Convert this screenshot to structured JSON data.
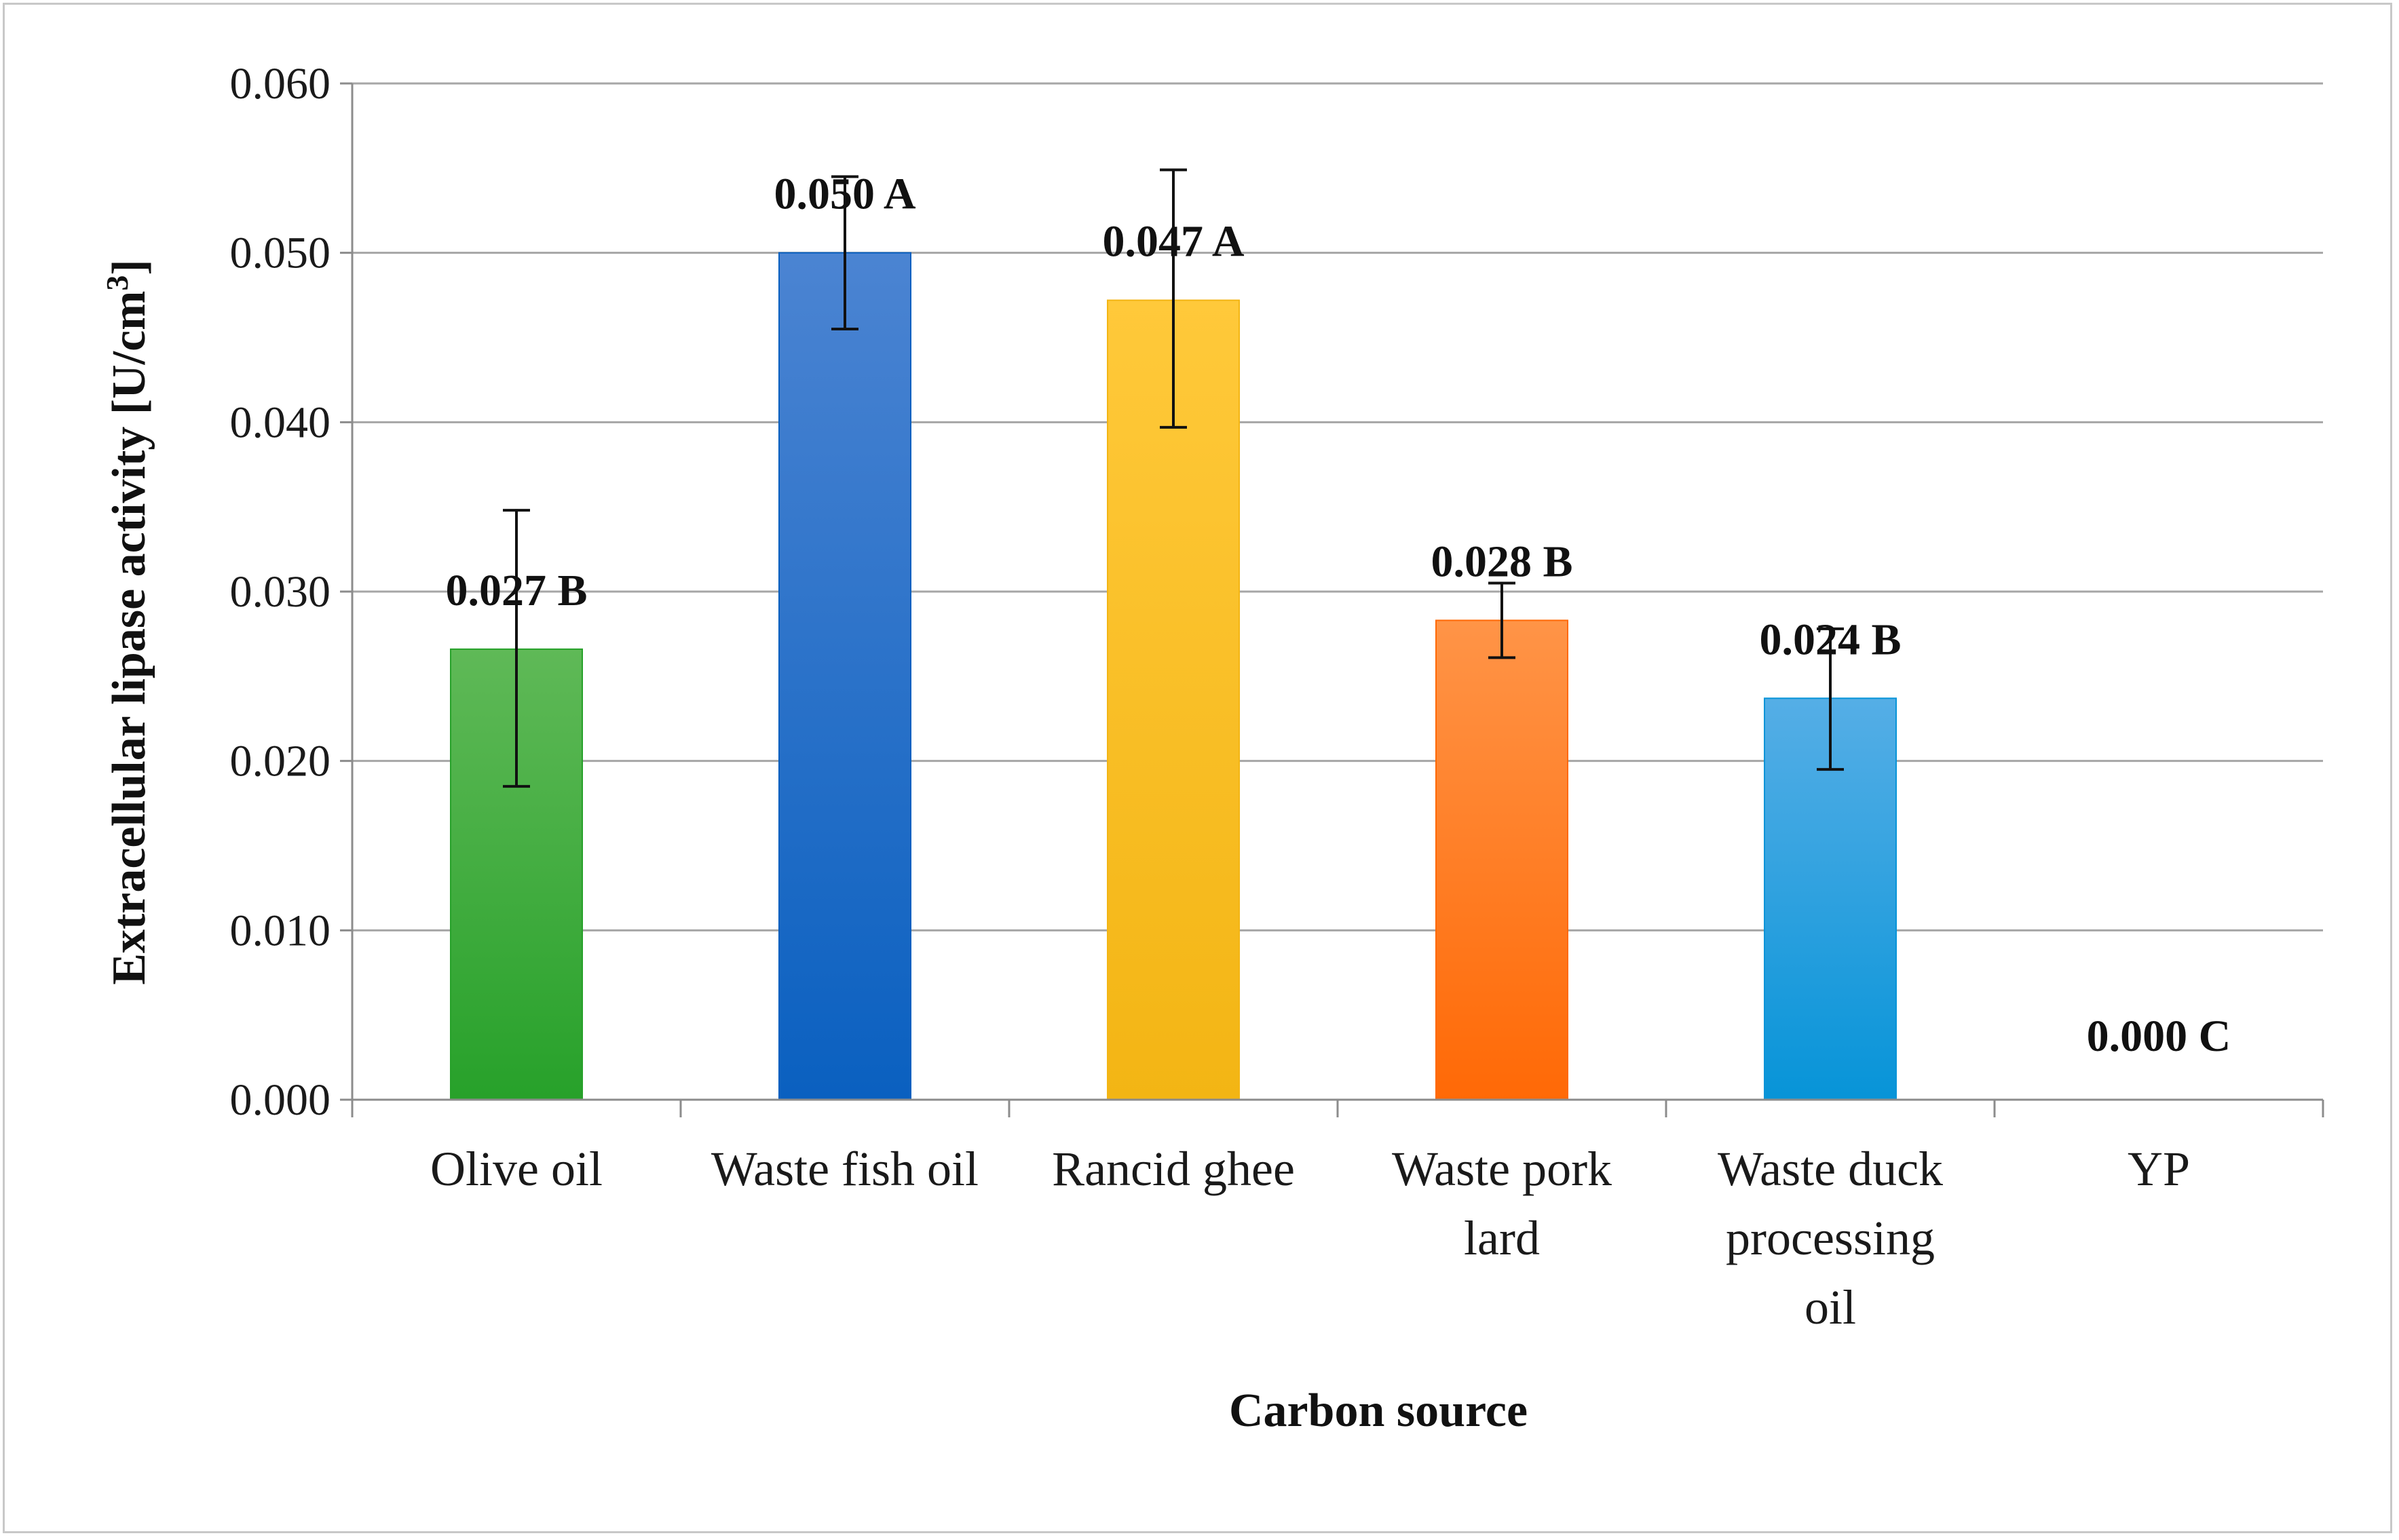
{
  "chart_data": {
    "type": "bar",
    "title": "",
    "xlabel": "Carbon source",
    "ylabel": "Extracellular lipase activity [U/cm",
    "ylabel_sup": "3",
    "ylabel_suffix": "]",
    "ylim": [
      0,
      0.06
    ],
    "yticks": [
      "0.000",
      "0.010",
      "0.020",
      "0.030",
      "0.040",
      "0.050",
      "0.060"
    ],
    "grid": true,
    "legend": "none",
    "categories": [
      [
        "Olive oil"
      ],
      [
        "Waste fish oil"
      ],
      [
        "Rancid ghee"
      ],
      [
        "Waste pork",
        "lard"
      ],
      [
        "Waste duck",
        "processing",
        "oil"
      ],
      [
        "YP"
      ]
    ],
    "values": [
      0.0266,
      0.05,
      0.0472,
      0.0283,
      0.0237,
      0.0
    ],
    "error_low": [
      0.0185,
      0.0455,
      0.0397,
      0.0261,
      0.0195,
      0.0
    ],
    "error_high": [
      0.0348,
      0.0545,
      0.0549,
      0.0305,
      0.0278,
      0.0
    ],
    "data_labels": [
      "0.027 B",
      "0.050 A",
      "0.047 A",
      "0.028 B",
      "0.024 B",
      "0.000 C"
    ],
    "colors": [
      {
        "top": "#5fb957",
        "bottom": "#27a12a"
      },
      {
        "top": "#4b84d2",
        "bottom": "#0a60c0"
      },
      {
        "top": "#ffc93a",
        "bottom": "#f3b514"
      },
      {
        "top": "#ff9447",
        "bottom": "#ff6906"
      },
      {
        "top": "#55aee6",
        "bottom": "#0794d8"
      },
      {
        "top": "#cccccc",
        "bottom": "#cccccc"
      }
    ]
  }
}
